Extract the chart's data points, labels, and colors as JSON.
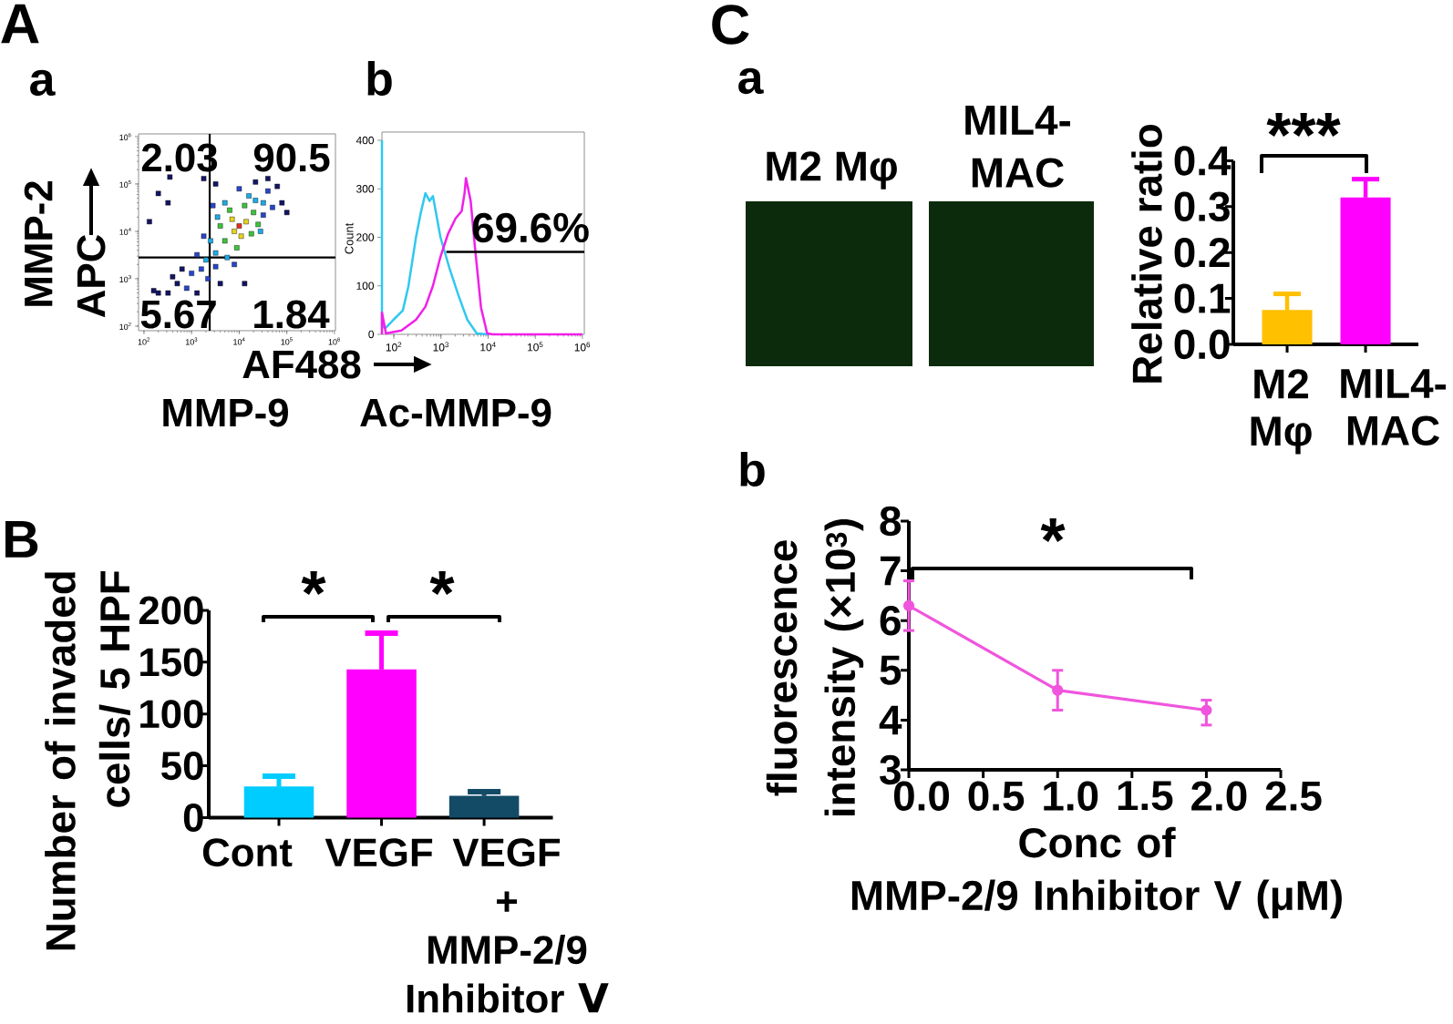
{
  "chart_data": [
    {
      "type": "scatter",
      "xlabel": "AF488",
      "ylabel": "APC",
      "log": "xy",
      "xlim": [
        77,
        1050000
      ],
      "ylim": [
        80,
        1140000
      ],
      "xticks": [
        {
          "value": 100,
          "label": "10$^{2}$"
        },
        {
          "value": 1000,
          "label": "10$^{3}$"
        },
        {
          "value": 10000,
          "label": "10$^{4}$"
        },
        {
          "value": 100000,
          "label": "10$^{5}$"
        },
        {
          "value": 1000000,
          "label": "10$^{6}$"
        }
      ],
      "yticks": [
        {
          "value": 100,
          "label": "10$^{2}$"
        },
        {
          "value": 1000,
          "label": "10$^{3}$"
        },
        {
          "value": 10000,
          "label": "10$^{4}$"
        },
        {
          "value": 100000,
          "label": "10$^{5}$"
        },
        {
          "value": 1000000,
          "label": "10$^{6}$"
        }
      ],
      "marker": "square",
      "x": [
        10000,
        7900,
        14000,
        11000,
        7100,
        5000,
        20000,
        6300,
        18000,
        4000,
        13000,
        8900,
        25000,
        3200,
        2500,
        32000,
        16000,
        5000,
        28000,
        5600,
        3500,
        22000,
        2000,
        1600,
        2200,
        1300,
        3200,
        40000,
        32000,
        2800,
        10000,
        50000,
        1800,
        7900,
        1000,
        790,
        500,
        320,
        200,
        630,
        400,
        1300,
        160,
        4000,
        63000,
        79000,
        40000,
        320,
        200,
        350,
        1800,
        13000,
        22000,
        100000,
        3200,
        130
      ],
      "values": [
        13000,
        10000,
        16000,
        7900,
        18000,
        6300,
        25000,
        28000,
        8900,
        13000,
        35000,
        4500,
        14000,
        3500,
        6300,
        40000,
        56000,
        40000,
        10000,
        2800,
        20000,
        45000,
        2500,
        1600,
        1000,
        3200,
        1800,
        71000,
        22000,
        35000,
        79000,
        32000,
        7900,
        2000,
        1300,
        630,
        790,
        500,
        500,
        1600,
        1100,
        500,
        560,
        790,
        89000,
        40000,
        130000,
        40000,
        63000,
        140000,
        130000,
        790,
        110000,
        25000,
        100000,
        16000
      ],
      "colors": [
        "#e0301c",
        "#e6d21e",
        "#e6d21e",
        "#e6d21e",
        "#e6d21e",
        "#3cc43c",
        "#3cc43c",
        "#3cc43c",
        "#3cc43c",
        "#3cc43c",
        "#3cc43c",
        "#3cc43c",
        "#3cc43c",
        "#1eaae6",
        "#1eaae6",
        "#1eaae6",
        "#1eaae6",
        "#1eaae6",
        "#1eaae6",
        "#1eaae6",
        "#1eaae6",
        "#1eaae6",
        "#1eaae6",
        "#2846c8",
        "#2846c8",
        "#2846c8",
        "#2846c8",
        "#2846c8",
        "#2846c8",
        "#2846c8",
        "#2846c8",
        "#2846c8",
        "#2846c8",
        "#2846c8",
        "#2846c8",
        "#2846c8",
        "#141464",
        "#141464",
        "#141464",
        "#141464",
        "#141464",
        "#141464",
        "#141464",
        "#141464",
        "#141464",
        "#141464",
        "#141464",
        "#141464",
        "#141464",
        "#141464",
        "#141464",
        "#141464",
        "#141464",
        "#141464",
        "#141464",
        "#141464"
      ],
      "ref_lines": [
        {
          "axis": "x",
          "value": 2400,
          "color": "#000000"
        },
        {
          "axis": "y",
          "value": 2800,
          "color": "#000000"
        }
      ],
      "annotations": [
        "A",
        "a",
        "2.03",
        "90.5",
        "5.67",
        "1.84",
        "MMP-2",
        "MMP-9"
      ]
    },
    {
      "type": "line",
      "ylabel": "Count",
      "log": "x",
      "xlim": [
        56,
        1100000
      ],
      "ylim": [
        0,
        417
      ],
      "xticks": [
        {
          "value": 100,
          "label": "10$^{2}$"
        },
        {
          "value": 1000,
          "label": "10$^{3}$"
        },
        {
          "value": 10000,
          "label": "10$^{4}$"
        },
        {
          "value": 100000,
          "label": "10$^{5}$"
        },
        {
          "value": 1000000,
          "label": "10$^{6}$"
        }
      ],
      "yticks": [
        0,
        100,
        200,
        300,
        400
      ],
      "series": [
        {
          "color": "#30c8f0",
          "x": [
            56,
            56,
            68,
            98,
            155,
            204,
            295,
            372,
            468,
            575,
            676,
            977,
            1200,
            1510,
            2340,
            3630,
            5750,
            10000
          ],
          "values": [
            400,
            15,
            14,
            30,
            49,
            99,
            200,
            250,
            291,
            275,
            285,
            200,
            170,
            137,
            81,
            30,
            2,
            0
          ]
        },
        {
          "color": "#f020e8",
          "x": [
            56,
            56,
            68,
            145,
            295,
            468,
            676,
            977,
            1410,
            2040,
            2750,
            3160,
            3390,
            4270,
            5250,
            7080,
            9550,
            12600,
            1000000
          ],
          "values": [
            0,
            45,
            2,
            8,
            30,
            57,
            100,
            160,
            207,
            239,
            254,
            290,
            322,
            275,
            181,
            55,
            2,
            0,
            0
          ]
        },
        {
          "color": "#000000",
          "x": [
            1300,
            1100000
          ],
          "values": [
            170,
            170
          ]
        }
      ],
      "annotations": [
        "b",
        "69.6%",
        "Ac-MMP-9"
      ]
    },
    {
      "type": "bar",
      "ylabel": "Number of invaded\ncells/ 5 HPF",
      "categories": [
        "Cont",
        "VEGF",
        "VEGF\n+\nMMP-2/9\nInhibitor Ⅴ"
      ],
      "values": [
        30,
        143,
        21
      ],
      "errors": [
        10,
        35,
        4
      ],
      "colors": [
        "#00ccff",
        "#ff00ff",
        "#134a66"
      ],
      "ylim": [
        0,
        200
      ],
      "yticks": [
        0,
        50,
        100,
        150,
        200
      ],
      "annotations": [
        "B",
        "*",
        "*"
      ]
    },
    {
      "type": "other",
      "annotations": [
        "C",
        "a",
        "M2 Mφ",
        "MIL4-\nMAC"
      ]
    },
    {
      "type": "bar",
      "ylabel": "Relative ratio",
      "categories": [
        "M2\nMφ",
        "MIL4-\nMAC"
      ],
      "values": [
        0.075,
        0.32
      ],
      "errors": [
        0.035,
        0.04
      ],
      "colors": [
        "#ffc000",
        "#ff00ff"
      ],
      "ylim": [
        0,
        0.4
      ],
      "yticks": [
        {
          "value": 0,
          "label": "0.0"
        },
        0.1,
        0.2,
        0.3,
        0.4
      ],
      "annotations": [
        "***"
      ]
    },
    {
      "type": "line",
      "xlabel": "Conc of\nMMP-2/9 Inhibitor V (μM)",
      "ylabel": "fluorescence\nintensity (×10$^{3}$)",
      "x": [
        0,
        1,
        2
      ],
      "values": [
        6.3,
        4.6,
        4.2
      ],
      "errors": [
        [
          5.8,
          6.8
        ],
        [
          4.2,
          5.0
        ],
        [
          3.9,
          4.4
        ]
      ],
      "color": "#f055dd",
      "marker": "circle",
      "xlim": [
        0,
        2.5
      ],
      "ylim": [
        3,
        8
      ],
      "xticks": [
        {
          "value": 0,
          "label": "0.0"
        },
        0.5,
        {
          "value": 1,
          "label": "1.0"
        },
        1.5,
        {
          "value": 2,
          "label": "2.0"
        },
        2.5
      ],
      "yticks": [
        3,
        4,
        5,
        6,
        7,
        8
      ],
      "annotations": [
        "b",
        "*"
      ]
    }
  ]
}
